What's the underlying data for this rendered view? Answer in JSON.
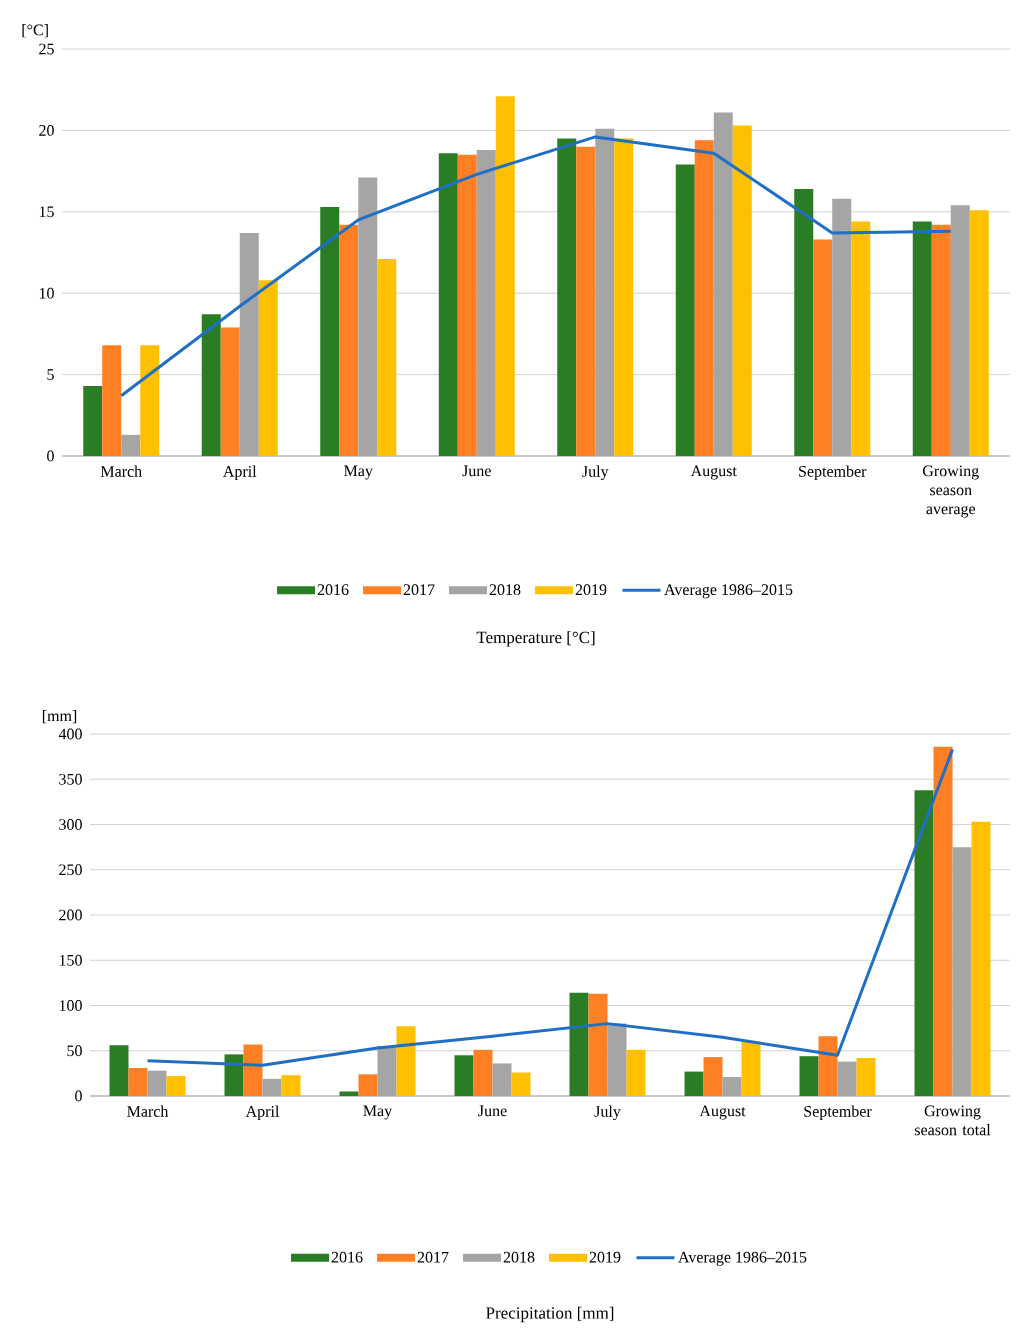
{
  "chart_data": [
    {
      "type": "bar",
      "title": "Temperature [°C]",
      "ylabel": "[°C]",
      "categories": [
        "March",
        "April",
        "May",
        "June",
        "July",
        "August",
        "September",
        "Growing season average"
      ],
      "ylim": [
        0,
        25
      ],
      "yticks": [
        0,
        5,
        10,
        15,
        20,
        25
      ],
      "grid": "y",
      "legend": "bottom",
      "series": [
        {
          "name": "2016",
          "color": "#2a7d24",
          "values": [
            4.3,
            8.7,
            15.3,
            18.6,
            19.5,
            17.9,
            16.4,
            14.4
          ]
        },
        {
          "name": "2017",
          "color": "#ff7f24",
          "values": [
            6.8,
            7.9,
            14.2,
            18.5,
            19.0,
            19.4,
            13.3,
            14.2
          ]
        },
        {
          "name": "2018",
          "color": "#a5a5a5",
          "values": [
            1.3,
            13.7,
            17.1,
            18.8,
            20.1,
            21.1,
            15.8,
            15.4
          ]
        },
        {
          "name": "2019",
          "color": "#ffc000",
          "values": [
            6.8,
            10.8,
            12.1,
            22.1,
            19.5,
            20.3,
            14.4,
            15.1
          ]
        },
        {
          "name": "Average 1986–2015",
          "type": "line",
          "color": "#1f6fc5",
          "values": [
            3.7,
            9.2,
            14.5,
            17.3,
            19.6,
            18.6,
            13.7,
            13.8
          ]
        }
      ]
    },
    {
      "type": "bar",
      "title": "Precipitation [mm]",
      "ylabel": "[mm]",
      "categories": [
        "March",
        "April",
        "May",
        "June",
        "July",
        "August",
        "September",
        "Growing season total"
      ],
      "ylim": [
        0,
        400
      ],
      "yticks": [
        0,
        50,
        100,
        150,
        200,
        250,
        300,
        350,
        400
      ],
      "grid": "y",
      "legend": "bottom",
      "series": [
        {
          "name": "2016",
          "color": "#2a7d24",
          "values": [
            56,
            46,
            5,
            45,
            114,
            27,
            44,
            338
          ]
        },
        {
          "name": "2017",
          "color": "#ff7f24",
          "values": [
            31,
            57,
            24,
            51,
            113,
            43,
            66,
            386
          ]
        },
        {
          "name": "2018",
          "color": "#a5a5a5",
          "values": [
            28,
            19,
            55,
            36,
            80,
            21,
            38,
            275
          ]
        },
        {
          "name": "2019",
          "color": "#ffc000",
          "values": [
            22,
            23,
            77,
            26,
            51,
            60,
            42,
            303
          ]
        },
        {
          "name": "Average 1986–2015",
          "type": "line",
          "color": "#1f6fc5",
          "values": [
            39,
            34,
            53,
            66,
            80,
            65,
            45,
            383
          ]
        }
      ]
    }
  ]
}
